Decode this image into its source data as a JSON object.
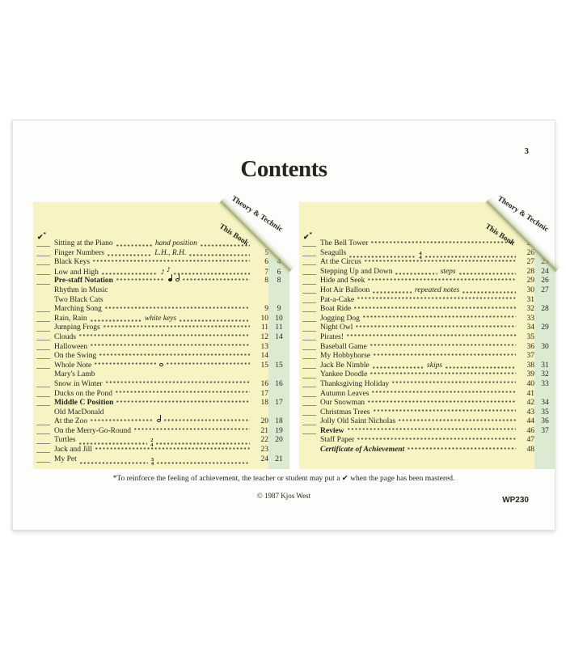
{
  "page": {
    "folio": "3",
    "title": "Contents",
    "footnote": "*To reinforce the feeling of achievement, the teacher or student may put a ✔ when the page has been mastered.",
    "copyright": "© 1987 Kjos West",
    "pub_code": "WP230"
  },
  "colors": {
    "panel_bg": "#f7f3c2",
    "stripe_bg": "#dcead2",
    "fold_olive": "#949c66",
    "text": "#25251f"
  },
  "legend": {
    "check": "✔",
    "asterisk": "*"
  },
  "panels": [
    {
      "corner_label_1": "Theory & Technic",
      "corner_label_2": "This Book",
      "rows": [
        {
          "t": "Sitting at the Piano",
          "mid": "hand position",
          "book": "4",
          "blank": true
        },
        {
          "t": "Finger Numbers",
          "mid": "L.H., R.H.",
          "book": "5",
          "theory": "2",
          "blank": true
        },
        {
          "t": "Black Keys",
          "book": "6",
          "theory": "4",
          "blank": true
        },
        {
          "t": "Low and High",
          "sym": "eighth_low_high",
          "book": "7",
          "theory": "6",
          "blank": true
        },
        {
          "t": "Pre-staff Notation",
          "b": true,
          "sym": "quarter_half",
          "book": "8",
          "theory": "8",
          "blank": true
        },
        {
          "t": "Rhythm in Music"
        },
        {
          "t": "Two Black Cats"
        },
        {
          "t": "Marching Song",
          "book": "9",
          "theory": "9",
          "blank": true
        },
        {
          "t": "Rain, Rain",
          "mid": "white keys",
          "book": "10",
          "theory": "10",
          "blank": true
        },
        {
          "t": "Jumping Frogs",
          "book": "11",
          "theory": "11",
          "blank": true
        },
        {
          "t": "Clouds",
          "book": "12",
          "theory": "14",
          "blank": true
        },
        {
          "t": "Halloween",
          "book": "13",
          "blank": true
        },
        {
          "t": "On the Swing",
          "book": "14",
          "blank": true
        },
        {
          "t": "Whole Note",
          "sym": "whole",
          "book": "15",
          "theory": "15",
          "blank": true
        },
        {
          "t": "Mary's Lamb"
        },
        {
          "t": "Snow in Winter",
          "book": "16",
          "theory": "16",
          "blank": true
        },
        {
          "t": "Ducks on the Pond",
          "book": "17",
          "blank": true
        },
        {
          "t": "Middle C Position",
          "b": true,
          "book": "18",
          "theory": "17",
          "blank": true
        },
        {
          "t": "Old MacDonald"
        },
        {
          "t": "At the Zoo",
          "sym": "half",
          "book": "20",
          "theory": "18",
          "blank": true
        },
        {
          "t": "On the Merry-Go-Round",
          "book": "21",
          "theory": "19",
          "blank": true
        },
        {
          "t": "Turtles",
          "sym": "frac:2/4",
          "book": "22",
          "theory": "20",
          "blank": true
        },
        {
          "t": "Jack and Jill",
          "book": "23",
          "blank": true
        },
        {
          "t": "My Pet",
          "sym": "frac:3/4",
          "book": "24",
          "theory": "21",
          "blank": true
        }
      ]
    },
    {
      "corner_label_1": "Theory & Technic",
      "corner_label_2": "This Book",
      "rows": [
        {
          "t": "The Bell Tower",
          "book": "25",
          "blank": true
        },
        {
          "t": "Seagulls",
          "sym": "frac:4/4",
          "book": "26",
          "theory": "22",
          "blank": true
        },
        {
          "t": "At the Circus",
          "book": "27",
          "theory": "23",
          "blank": true
        },
        {
          "t": "Stepping Up and Down",
          "mid": "steps",
          "book": "28",
          "theory": "24",
          "blank": true
        },
        {
          "t": "Hide and Seek",
          "book": "29",
          "theory": "26",
          "blank": true
        },
        {
          "t": "Hot Air Balloon",
          "mid": "repeated notes",
          "book": "30",
          "theory": "27",
          "blank": true
        },
        {
          "t": "Pat-a-Cake",
          "book": "31",
          "blank": true
        },
        {
          "t": "Boat Ride",
          "book": "32",
          "theory": "28",
          "blank": true
        },
        {
          "t": "Jogging Dog",
          "book": "33",
          "blank": true
        },
        {
          "t": "Night Owl",
          "book": "34",
          "theory": "29",
          "blank": true
        },
        {
          "t": "Pirates!",
          "book": "35",
          "blank": true
        },
        {
          "t": "Baseball Game",
          "book": "36",
          "theory": "30",
          "blank": true
        },
        {
          "t": "My Hobbyhorse",
          "book": "37",
          "blank": true
        },
        {
          "t": "Jack Be Nimble",
          "mid": "skips",
          "book": "38",
          "theory": "31",
          "blank": true
        },
        {
          "t": "Yankee Doodle",
          "book": "39",
          "theory": "32",
          "blank": true
        },
        {
          "t": "Thanksgiving Holiday",
          "book": "40",
          "theory": "33",
          "blank": true
        },
        {
          "t": "Autumn Leaves",
          "book": "41",
          "blank": true
        },
        {
          "t": "Our Snowman",
          "book": "42",
          "theory": "34",
          "blank": true
        },
        {
          "t": "Christmas Trees",
          "book": "43",
          "theory": "35",
          "blank": true
        },
        {
          "t": "Jolly Old Saint Nicholas",
          "book": "44",
          "theory": "36",
          "blank": true
        },
        {
          "t": "Review",
          "b": true,
          "book": "46",
          "theory": "37",
          "blank": true
        },
        {
          "t": "Staff Paper",
          "book": "47"
        },
        {
          "t": "Certificate of Achievement",
          "bi": true,
          "book": "48"
        }
      ]
    }
  ]
}
